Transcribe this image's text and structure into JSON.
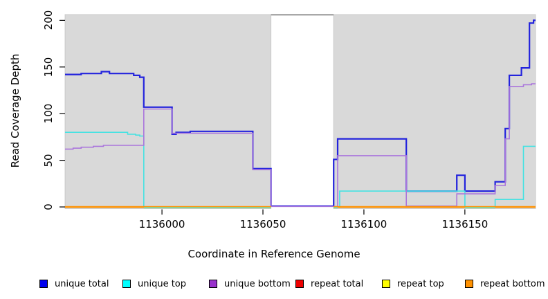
{
  "chart_data": {
    "type": "line",
    "title": "",
    "xlabel": "Coordinate in Reference Genome",
    "ylabel": "Read Coverage Depth",
    "xlim": [
      1135952,
      1136185
    ],
    "ylim": [
      0,
      206
    ],
    "x_ticks": [
      1136000,
      1136050,
      1136100,
      1136150
    ],
    "y_ticks": [
      0,
      50,
      100,
      150,
      200
    ],
    "grid": "off",
    "plot_background_color": "#d9d9d9",
    "background_regions": [
      {
        "name": "covered-left",
        "x0": 1135952,
        "x1": 1136054
      },
      {
        "name": "covered-right",
        "x0": 1136085,
        "x1": 1136185
      }
    ],
    "gap_region": {
      "x0": 1136054,
      "x1": 1136085,
      "top_value": 206,
      "top_line_color": "#9a9a9a"
    },
    "series": [
      {
        "name": "unique total",
        "color": "#2323dd",
        "width": 2.2,
        "parts": [
          [
            [
              1135952,
              142
            ],
            [
              1135960,
              143
            ],
            [
              1135970,
              145
            ],
            [
              1135974,
              143
            ],
            [
              1135986,
              141
            ],
            [
              1135989,
              139
            ],
            [
              1135991,
              107
            ],
            [
              1136005,
              78
            ],
            [
              1136007,
              80
            ],
            [
              1136014,
              81
            ],
            [
              1136045,
              41
            ],
            [
              1136054,
              1
            ],
            [
              1136085,
              51
            ],
            [
              1136087,
              73
            ],
            [
              1136121,
              17
            ],
            [
              1136146,
              34
            ],
            [
              1136150,
              17
            ],
            [
              1136165,
              27
            ],
            [
              1136170,
              84
            ],
            [
              1136172,
              141
            ],
            [
              1136178,
              149
            ],
            [
              1136182,
              197
            ],
            [
              1136184,
              200
            ],
            [
              1136185,
              200
            ]
          ]
        ]
      },
      {
        "name": "unique top",
        "color": "#45e2e2",
        "width": 1.6,
        "parts": [
          [
            [
              1135952,
              80
            ],
            [
              1135983,
              78
            ],
            [
              1135987,
              77
            ],
            [
              1135989,
              76
            ],
            [
              1135991,
              0
            ],
            [
              1136054,
              0
            ]
          ],
          [
            [
              1136085,
              0
            ],
            [
              1136088,
              17
            ],
            [
              1136150,
              0
            ],
            [
              1136165,
              8
            ],
            [
              1136179,
              65
            ],
            [
              1136185,
              65
            ]
          ]
        ]
      },
      {
        "name": "unique bottom",
        "color": "#aa76dc",
        "width": 1.6,
        "parts": [
          [
            [
              1135952,
              62
            ],
            [
              1135956,
              63
            ],
            [
              1135960,
              64
            ],
            [
              1135966,
              65
            ],
            [
              1135971,
              66
            ],
            [
              1135991,
              105
            ],
            [
              1136005,
              79
            ],
            [
              1136045,
              40
            ],
            [
              1136054,
              0.5
            ],
            [
              1136087,
              55
            ],
            [
              1136121,
              1
            ],
            [
              1136146,
              14
            ],
            [
              1136165,
              23
            ],
            [
              1136170,
              73
            ],
            [
              1136172,
              129
            ],
            [
              1136179,
              131
            ],
            [
              1136183,
              132
            ],
            [
              1136185,
              132
            ]
          ]
        ]
      },
      {
        "name": "repeat total",
        "color": "#ee0000",
        "width": 1.6,
        "parts": [
          [
            [
              1135952,
              0
            ],
            [
              1136054,
              0
            ]
          ],
          [
            [
              1136085,
              0
            ],
            [
              1136185,
              0
            ]
          ]
        ]
      },
      {
        "name": "repeat top",
        "color": "#ffff00",
        "width": 1.6,
        "parts": [
          [
            [
              1135952,
              0
            ],
            [
              1136054,
              0
            ]
          ],
          [
            [
              1136085,
              0
            ],
            [
              1136185,
              0
            ]
          ]
        ]
      },
      {
        "name": "repeat bottom",
        "color": "#ff9100",
        "width": 2.4,
        "parts": [
          [
            [
              1135952,
              0
            ],
            [
              1136054,
              0
            ]
          ],
          [
            [
              1136085,
              0
            ],
            [
              1136185,
              0
            ]
          ]
        ]
      }
    ],
    "baseline_overlap_segments": [
      {
        "color": "#8fce8f",
        "x0": 1135991,
        "x1": 1136054,
        "value": 0
      },
      {
        "color": "#8fce8f",
        "x0": 1136085,
        "x1": 1136087,
        "value": 0
      },
      {
        "color": "#8fce8f",
        "x0": 1136150,
        "x1": 1136165,
        "value": 0
      }
    ]
  },
  "axes": {
    "x_title": "Coordinate in Reference Genome",
    "y_title": "Read Coverage Depth"
  },
  "legend": {
    "items": [
      {
        "label": "unique total",
        "color": "#0000ee"
      },
      {
        "label": "unique top",
        "color": "#00ffff"
      },
      {
        "label": "unique bottom",
        "color": "#9932cc"
      },
      {
        "label": "repeat total",
        "color": "#ee0000"
      },
      {
        "label": "repeat top",
        "color": "#ffff00"
      },
      {
        "label": "repeat bottom",
        "color": "#ff9100"
      }
    ]
  }
}
